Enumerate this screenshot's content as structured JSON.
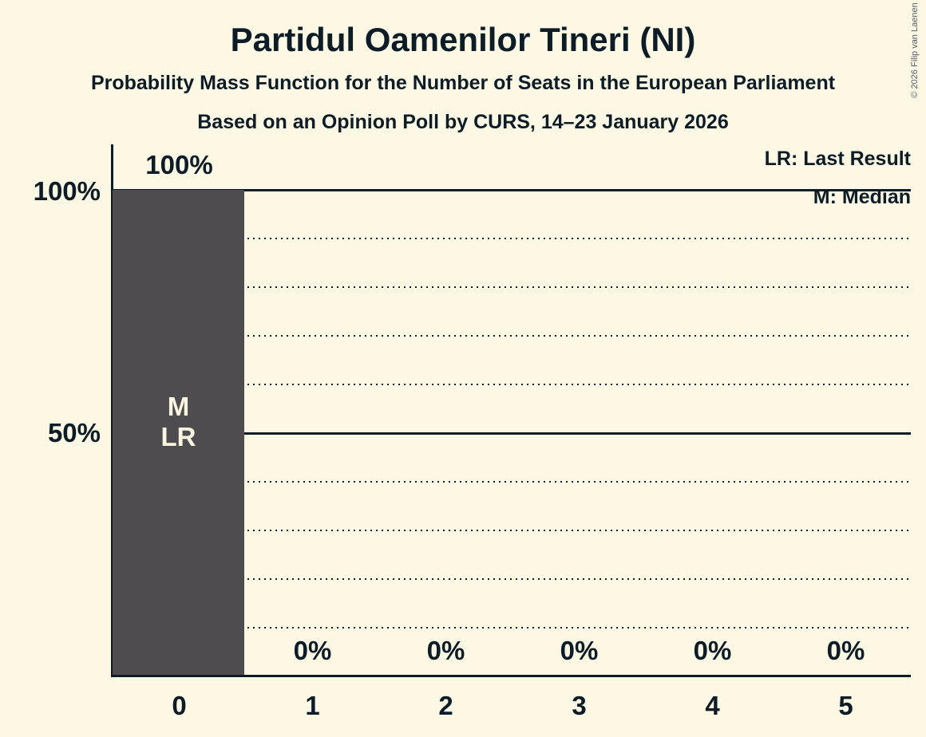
{
  "title": "Partidul Oamenilor Tineri (NI)",
  "subtitle": "Probability Mass Function for the Number of Seats in the European Parliament",
  "subsubtitle": "Based on an Opinion Poll by CURS, 14–23 January 2026",
  "copyright": "© 2026 Filip van Laenen",
  "legend": {
    "lr": "LR: Last Result",
    "m": "M: Median"
  },
  "y_axis": {
    "tick_100": "100%",
    "tick_50": "50%"
  },
  "chart_data": {
    "type": "bar",
    "title": "Partidul Oamenilor Tineri (NI)",
    "subtitle": "Probability Mass Function for the Number of Seats in the European Parliament",
    "source": "Based on an Opinion Poll by CURS, 14–23 January 2026",
    "categories": [
      "0",
      "1",
      "2",
      "3",
      "4",
      "5"
    ],
    "values": [
      100,
      0,
      0,
      0,
      0,
      0
    ],
    "value_labels": [
      "100%",
      "0%",
      "0%",
      "0%",
      "0%",
      "0%"
    ],
    "bar_annotations": [
      [
        "M",
        "LR"
      ],
      [],
      [],
      [],
      [],
      []
    ],
    "xlabel": "",
    "ylabel": "",
    "ylim": [
      0,
      100
    ],
    "ytick_labels": [
      {
        "value": 100,
        "label": "100%"
      },
      {
        "value": 50,
        "label": "50%"
      }
    ],
    "gridlines_solid": [
      100,
      50
    ],
    "gridlines_dotted": [
      90,
      80,
      70,
      60,
      40,
      30,
      20,
      10
    ],
    "legend_entries": [
      "LR: Last Result",
      "M: Median"
    ],
    "legend_position": "top-right",
    "median_seats": 0,
    "last_result_seats": 0,
    "colors": {
      "background": "#FCF8E3",
      "bar": "#4E4C4E",
      "text": "#0E1C28",
      "bar_annotation_text": "#FAF5DE"
    }
  }
}
